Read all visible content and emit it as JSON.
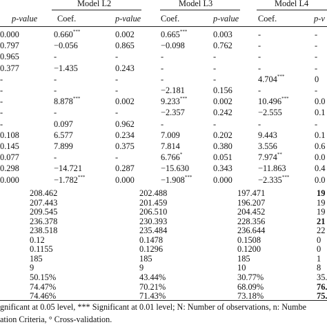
{
  "header": {
    "models": [
      "Model L2",
      "Model L3",
      "Model L4"
    ],
    "columns": [
      "p-value",
      "Coef.",
      "p-value",
      "Coef.",
      "p-value",
      "Coef.",
      "p-v"
    ]
  },
  "coef_rows": [
    {
      "c0": "0.000",
      "c1": "0.660",
      "s1": "***",
      "c2": "0.002",
      "c3": "0.665",
      "s3": "***",
      "c4": "0.003",
      "c5": "-",
      "s5": "",
      "c6": "-"
    },
    {
      "c0": "0.797",
      "c1": "−0.056",
      "s1": "",
      "c2": "0.865",
      "c3": "−0.098",
      "s3": "",
      "c4": "0.762",
      "c5": "-",
      "s5": "",
      "c6": "-"
    },
    {
      "c0": "0.965",
      "c1": "-",
      "s1": "",
      "c2": "-",
      "c3": "-",
      "s3": "",
      "c4": "-",
      "c5": "-",
      "s5": "",
      "c6": "-"
    },
    {
      "c0": "0.377",
      "c1": "−1.435",
      "s1": "",
      "c2": "0.243",
      "c3": "-",
      "s3": "",
      "c4": "-",
      "c5": "-",
      "s5": "",
      "c6": "-"
    },
    {
      "c0": "-",
      "c1": "-",
      "s1": "",
      "c2": "-",
      "c3": "-",
      "s3": "",
      "c4": "-",
      "c5": "4.704",
      "s5": "***",
      "c6": "0"
    },
    {
      "c0": "-",
      "c1": "-",
      "s1": "",
      "c2": "-",
      "c3": "−2.181",
      "s3": "",
      "c4": "0.156",
      "c5": "-",
      "s5": "",
      "c6": "-"
    },
    {
      "c0": "-",
      "c1": "8.878",
      "s1": "***",
      "c2": "0.002",
      "c3": "9.233",
      "s3": "***",
      "c4": "0.002",
      "c5": "10.496",
      "s5": "***",
      "c6": "0.0"
    },
    {
      "c0": "-",
      "c1": "-",
      "s1": "",
      "c2": "-",
      "c3": "−2.357",
      "s3": "",
      "c4": "0.242",
      "c5": "−2.555",
      "s5": "",
      "c6": "0.1"
    },
    {
      "c0": "-",
      "c1": "0.097",
      "s1": "",
      "c2": "0.962",
      "c3": "-",
      "s3": "",
      "c4": "-",
      "c5": "-",
      "s5": "",
      "c6": "-"
    },
    {
      "c0": "0.108",
      "c1": "6.577",
      "s1": "",
      "c2": "0.234",
      "c3": "7.009",
      "s3": "",
      "c4": "0.202",
      "c5": "9.443",
      "s5": "",
      "c6": "0.1"
    },
    {
      "c0": "0.145",
      "c1": "7.899",
      "s1": "",
      "c2": "0.375",
      "c3": "7.814",
      "s3": "",
      "c4": "0.380",
      "c5": "3.556",
      "s5": "",
      "c6": "0.6"
    },
    {
      "c0": "0.077",
      "c1": "-",
      "s1": "",
      "c2": "-",
      "c3": "6.766",
      "s3": "*",
      "c4": "0.051",
      "c5": "7.974",
      "s5": "**",
      "c6": "0.0"
    },
    {
      "c0": "0.298",
      "c1": "−14.721",
      "s1": "",
      "c2": "0.287",
      "c3": "−15.630",
      "s3": "",
      "c4": "0.343",
      "c5": "−11.863",
      "s5": "",
      "c6": "0.4"
    },
    {
      "c0": "0.000",
      "c1": "−1.782",
      "s1": "***",
      "c2": "0.000",
      "c3": "−1.908",
      "s3": "***",
      "c4": "0.000",
      "c5": "−2.335",
      "s5": "***",
      "c6": "0.0"
    }
  ],
  "stat_rows": [
    {
      "a": "208.462",
      "b": "202.488",
      "c": "197.471",
      "d": "19"
    },
    {
      "a": "207.443",
      "b": "201.459",
      "c": "196.207",
      "d": "19"
    },
    {
      "a": "209.545",
      "b": "206.510",
      "c": "204.452",
      "d": "19"
    },
    {
      "a": "236.378",
      "b": "230.393",
      "c": "228.356",
      "d": "21"
    },
    {
      "a": "238.518",
      "b": "235.484",
      "c": "236.644",
      "d": "22"
    },
    {
      "a": "0.12",
      "b": "0.1478",
      "c": "0.1508",
      "d": "0"
    },
    {
      "a": "0.1155",
      "b": "0.1296",
      "c": "0.1200",
      "d": "0"
    },
    {
      "a": "185",
      "b": "185",
      "c": "185",
      "d": "1"
    },
    {
      "a": "9",
      "b": "9",
      "c": "10",
      "d": "8"
    },
    {
      "a": "50.15%",
      "b": "43.44%",
      "c": "30.77%",
      "d": "35."
    },
    {
      "a": "74.47%",
      "b": "70.21%",
      "c": "68.09%",
      "d": "76."
    },
    {
      "a": "74.46%",
      "b": "71.43%",
      "c": "73.18%",
      "d": "75."
    }
  ],
  "footnotes": {
    "line1": "gnificant at 0.05 level, *** Significant at 0.01 level; N: Number of observations, n: Numbe",
    "line2": "ation Criteria, ° Cross-validation."
  }
}
